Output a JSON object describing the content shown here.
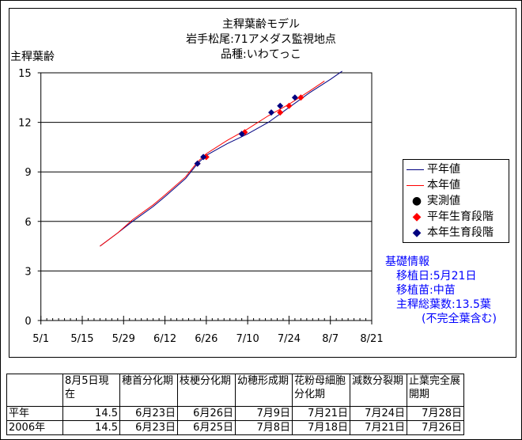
{
  "chart_data": {
    "type": "line",
    "title": [
      "主稈葉齢モデル",
      "岩手松尾:71アメダス監視地点",
      "品種:いわてっこ"
    ],
    "ylabel": "主稈葉齢",
    "ylim": [
      0,
      15
    ],
    "yticks": [
      "0",
      "3",
      "6",
      "9",
      "12",
      "15"
    ],
    "xlim": [
      "5/1",
      "8/21"
    ],
    "xticks": [
      "5/1",
      "5/15",
      "5/29",
      "6/12",
      "6/26",
      "7/10",
      "7/24",
      "8/7",
      "8/21"
    ],
    "grid": "horizontal",
    "legend_position": "right",
    "series": [
      {
        "name": "平年値",
        "type": "line",
        "color": "#000080",
        "points": [
          [
            "5/21",
            4.5
          ],
          [
            "5/27",
            5.3
          ],
          [
            "6/1",
            6.0
          ],
          [
            "6/8",
            6.9
          ],
          [
            "6/12",
            7.5
          ],
          [
            "6/19",
            8.6
          ],
          [
            "6/23",
            9.5
          ],
          [
            "6/26",
            10.0
          ],
          [
            "7/3",
            10.7
          ],
          [
            "7/10",
            11.3
          ],
          [
            "7/17",
            12.0
          ],
          [
            "7/24",
            12.9
          ],
          [
            "7/31",
            13.8
          ],
          [
            "8/7",
            14.6
          ],
          [
            "8/11",
            15.1
          ]
        ]
      },
      {
        "name": "本年値",
        "type": "line",
        "color": "#ff0000",
        "points": [
          [
            "5/21",
            4.5
          ],
          [
            "5/27",
            5.3
          ],
          [
            "6/1",
            6.1
          ],
          [
            "6/8",
            7.0
          ],
          [
            "6/12",
            7.6
          ],
          [
            "6/19",
            8.7
          ],
          [
            "6/23",
            9.6
          ],
          [
            "6/26",
            10.1
          ],
          [
            "7/3",
            10.9
          ],
          [
            "7/10",
            11.6
          ],
          [
            "7/17",
            12.4
          ],
          [
            "7/24",
            13.1
          ],
          [
            "7/31",
            13.9
          ],
          [
            "8/5",
            14.5
          ]
        ]
      },
      {
        "name": "実測値",
        "type": "scatter",
        "color": "#000000",
        "points": []
      },
      {
        "name": "平年生育段階",
        "type": "scatter",
        "color": "#ff0000",
        "points": [
          [
            "6/23",
            9.5
          ],
          [
            "6/26",
            9.9
          ],
          [
            "7/9",
            11.4
          ],
          [
            "7/21",
            12.6
          ],
          [
            "7/24",
            13.0
          ],
          [
            "7/28",
            13.5
          ]
        ]
      },
      {
        "name": "本年生育段階",
        "type": "scatter",
        "color": "#000080",
        "points": [
          [
            "6/23",
            9.5
          ],
          [
            "6/25",
            9.9
          ],
          [
            "7/8",
            11.3
          ],
          [
            "7/18",
            12.6
          ],
          [
            "7/21",
            13.0
          ],
          [
            "7/26",
            13.5
          ]
        ]
      }
    ]
  },
  "info": {
    "heading": "基礎情報",
    "lines": [
      "移植日:5月21日",
      "移植苗:中苗",
      "主稈総葉数:13.5葉",
      "(不完全葉含む)"
    ]
  },
  "table": {
    "headers": [
      "",
      "8月5日現在",
      "穂首分化期",
      "枝梗分化期",
      "幼穂形成期",
      "花粉母細胞分化期",
      "減数分裂期",
      "止葉完全展開期"
    ],
    "rows": [
      [
        "平年",
        "14.5",
        "6月23日",
        "6月26日",
        "7月9日",
        "7月21日",
        "7月24日",
        "7月28日"
      ],
      [
        "2006年",
        "14.5",
        "6月23日",
        "6月25日",
        "7月8日",
        "7月18日",
        "7月21日",
        "7月26日"
      ]
    ]
  }
}
